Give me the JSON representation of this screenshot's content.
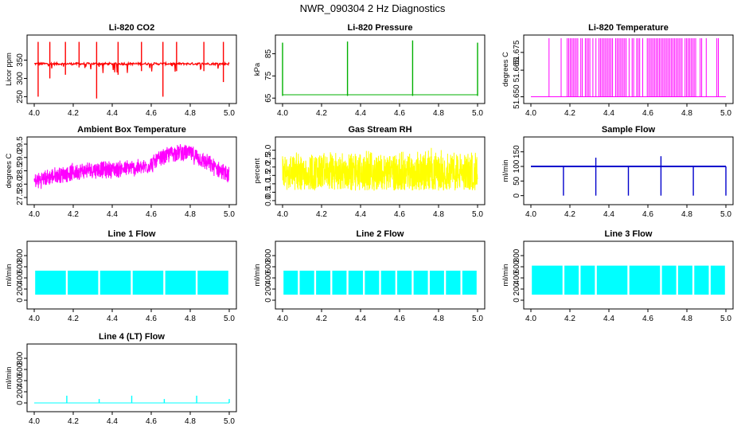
{
  "figure_title": "NWR_090304  2 Hz Diagnostics",
  "colors": {
    "red": "#ff0000",
    "green": "#00b000",
    "magenta": "#ff00ff",
    "yellow": "#ffff00",
    "blue": "#0000cc",
    "cyan": "#00ffff"
  },
  "chart_data": [
    {
      "id": "co2",
      "type": "line",
      "title": "Li-820 CO2",
      "ylabel": "Licor ppm",
      "color": "red",
      "x_ticks": [
        4.0,
        4.2,
        4.4,
        4.6,
        4.8,
        5.0
      ],
      "xlim": [
        4.0,
        5.0
      ],
      "y_ticks": [
        250,
        300,
        350
      ],
      "ylim": [
        240,
        410
      ],
      "baseline": 340,
      "spikes": [
        [
          4.02,
          250,
          400
        ],
        [
          4.08,
          300,
          400
        ],
        [
          4.16,
          310,
          400
        ],
        [
          4.23,
          330,
          400
        ],
        [
          4.32,
          245,
          400
        ],
        [
          4.43,
          310,
          400
        ],
        [
          4.55,
          320,
          400
        ],
        [
          4.66,
          250,
          400
        ],
        [
          4.73,
          320,
          400
        ],
        [
          4.87,
          320,
          400
        ],
        [
          4.97,
          290,
          400
        ]
      ]
    },
    {
      "id": "pressure",
      "type": "line",
      "title": "Li-820 Pressure",
      "ylabel": "kPa",
      "color": "green",
      "x_ticks": [
        4.0,
        4.2,
        4.4,
        4.6,
        4.8,
        5.0
      ],
      "xlim": [
        4.0,
        5.0
      ],
      "y_ticks": [
        65,
        75,
        85
      ],
      "ylim": [
        64,
        92
      ],
      "baseline": 66.5,
      "spikes": [
        [
          4.0,
          66,
          90
        ],
        [
          4.333,
          66,
          90.5
        ],
        [
          4.667,
          66,
          91
        ],
        [
          5.0,
          66,
          90
        ]
      ]
    },
    {
      "id": "temperature",
      "type": "line",
      "title": "Li-820 Temperature",
      "ylabel": "degrees C",
      "color": "magenta",
      "x_ticks": [
        4.0,
        4.2,
        4.4,
        4.6,
        4.8,
        5.0
      ],
      "xlim": [
        4.0,
        5.0
      ],
      "y_ticks": [
        51.65,
        51.665,
        51.675
      ],
      "y_tick_labels": [
        "51.650",
        "51.665",
        "51.675"
      ],
      "ylim": [
        51.648,
        51.683
      ],
      "baseline": 51.65,
      "high": 51.683
    },
    {
      "id": "ambient",
      "type": "line",
      "title": "Ambient Box Temperature",
      "ylabel": "degrees C",
      "color": "magenta",
      "x_ticks": [
        4.0,
        4.2,
        4.4,
        4.6,
        4.8,
        5.0
      ],
      "xlim": [
        4.0,
        5.0
      ],
      "y_ticks": [
        27.5,
        28.0,
        28.5,
        29.0,
        29.5
      ],
      "y_tick_labels": [
        "27.5",
        "28.0",
        "28.5",
        "29.0",
        "29.5"
      ],
      "ylim": [
        27.35,
        29.65
      ],
      "trend_x": [
        4.0,
        4.1,
        4.2,
        4.3,
        4.4,
        4.5,
        4.55,
        4.6,
        4.7,
        4.75,
        4.8,
        4.9,
        5.0
      ],
      "trend_y": [
        28.1,
        28.3,
        28.45,
        28.55,
        28.55,
        28.6,
        28.6,
        28.75,
        29.15,
        29.2,
        29.15,
        28.75,
        28.3
      ],
      "band": 0.45
    },
    {
      "id": "rh",
      "type": "line",
      "title": "Gas Stream RH",
      "ylabel": "percent",
      "color": "yellow",
      "x_ticks": [
        4.0,
        4.2,
        4.4,
        4.6,
        4.8,
        5.0
      ],
      "xlim": [
        4.0,
        5.0
      ],
      "y_ticks": [
        0.0,
        0.5,
        1.0,
        1.5,
        2.0,
        2.5,
        3.0
      ],
      "y_tick_labels": [
        "0.0",
        "0.5",
        "1.0",
        "1.5",
        "2.0",
        "2.5",
        "3.0"
      ],
      "ylim": [
        -0.05,
        3.6
      ],
      "low": 0.6,
      "high": 3.0
    },
    {
      "id": "sample_flow",
      "type": "line",
      "title": "Sample Flow",
      "ylabel": "ml/min",
      "color": "blue",
      "x_ticks": [
        4.0,
        4.2,
        4.4,
        4.6,
        4.8,
        5.0
      ],
      "xlim": [
        4.0,
        5.0
      ],
      "y_ticks": [
        0,
        50,
        100,
        150
      ],
      "ylim": [
        -20,
        190
      ],
      "baseline": 100,
      "spikes": [
        [
          4.167,
          0,
          100
        ],
        [
          4.333,
          0,
          130
        ],
        [
          4.5,
          0,
          100
        ],
        [
          4.667,
          0,
          135
        ],
        [
          4.833,
          0,
          100
        ],
        [
          5.0,
          0,
          100
        ]
      ]
    },
    {
      "id": "line1",
      "type": "area",
      "title": "Line 1 Flow",
      "ylabel": "ml/min",
      "color": "cyan",
      "x_ticks": [
        4.0,
        4.2,
        4.4,
        4.6,
        4.8,
        5.0
      ],
      "xlim": [
        4.0,
        5.0
      ],
      "y_ticks": [
        0,
        200,
        400,
        600,
        800
      ],
      "ylim": [
        -100,
        1000
      ],
      "low": 100,
      "high": 530,
      "gaps": [
        4.167,
        4.333,
        4.5,
        4.667,
        4.833
      ]
    },
    {
      "id": "line2",
      "type": "area",
      "title": "Line 2 Flow",
      "ylabel": "ml/min",
      "color": "cyan",
      "x_ticks": [
        4.0,
        4.2,
        4.4,
        4.6,
        4.8,
        5.0
      ],
      "xlim": [
        4.0,
        5.0
      ],
      "y_ticks": [
        0,
        200,
        400,
        600,
        800
      ],
      "ylim": [
        -100,
        1000
      ],
      "low": 100,
      "high": 530,
      "gaps": [
        4.083,
        4.167,
        4.25,
        4.333,
        4.417,
        4.5,
        4.583,
        4.667,
        4.75,
        4.833,
        4.917
      ]
    },
    {
      "id": "line3",
      "type": "area",
      "title": "Line 3 Flow",
      "ylabel": "ml/min",
      "color": "cyan",
      "x_ticks": [
        4.0,
        4.2,
        4.4,
        4.6,
        4.8,
        5.0
      ],
      "xlim": [
        4.0,
        5.0
      ],
      "y_ticks": [
        0,
        200,
        400,
        600,
        800
      ],
      "ylim": [
        -100,
        1000
      ],
      "low": 100,
      "high": 620,
      "gaps": [
        4.167,
        4.25,
        4.333,
        4.5,
        4.667,
        4.75,
        4.833,
        4.917
      ]
    },
    {
      "id": "line4",
      "type": "line",
      "title": "Line 4 (LT) Flow",
      "ylabel": "ml/min",
      "color": "cyan",
      "x_ticks": [
        4.0,
        4.2,
        4.4,
        4.6,
        4.8,
        5.0
      ],
      "xlim": [
        4.0,
        5.0
      ],
      "y_ticks": [
        0,
        200,
        400,
        600,
        800
      ],
      "ylim": [
        -100,
        1000
      ],
      "baseline": 0,
      "spikes": [
        [
          4.167,
          0,
          130
        ],
        [
          4.333,
          0,
          70
        ],
        [
          4.5,
          0,
          130
        ],
        [
          4.667,
          0,
          70
        ],
        [
          4.833,
          0,
          130
        ],
        [
          5.0,
          0,
          70
        ]
      ]
    }
  ]
}
